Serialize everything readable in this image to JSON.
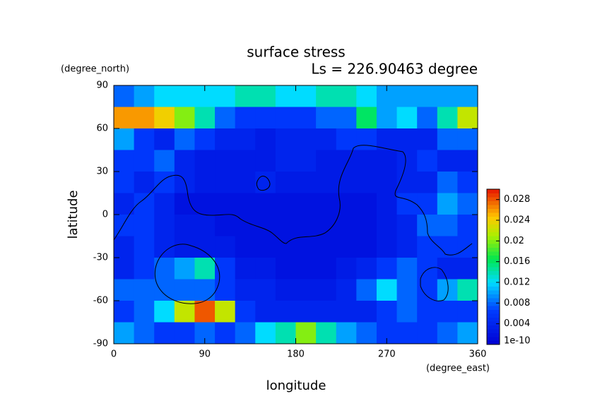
{
  "chart_data": {
    "type": "heatmap",
    "title": "surface stress",
    "subtitle": "Ls = 226.90463 degree",
    "x_label": "longitude",
    "y_label": "latitude",
    "x_unit": "(degree_east)",
    "y_unit": "(degree_north)",
    "x": [
      10,
      30,
      50,
      70,
      90,
      110,
      130,
      150,
      170,
      190,
      210,
      230,
      250,
      270,
      290,
      310,
      330,
      350
    ],
    "y": [
      82.5,
      67.5,
      52.5,
      37.5,
      22.5,
      7.5,
      -7.5,
      -22.5,
      -37.5,
      -52.5,
      -67.5,
      -82.5
    ],
    "z": [
      [
        0.008,
        0.01,
        0.012,
        0.012,
        0.012,
        0.012,
        0.014,
        0.014,
        0.012,
        0.012,
        0.014,
        0.014,
        0.012,
        0.01,
        0.01,
        0.01,
        0.01,
        0.01
      ],
      [
        0.026,
        0.026,
        0.024,
        0.02,
        0.014,
        0.008,
        0.006,
        0.006,
        0.006,
        0.006,
        0.008,
        0.008,
        0.016,
        0.01,
        0.012,
        0.008,
        0.014,
        0.022
      ],
      [
        0.01,
        0.006,
        0.004,
        0.008,
        0.006,
        0.004,
        0.004,
        0.003,
        0.004,
        0.004,
        0.004,
        0.006,
        0.006,
        0.004,
        0.004,
        0.004,
        0.008,
        0.008
      ],
      [
        0.006,
        0.006,
        0.008,
        0.004,
        0.003,
        0.003,
        0.003,
        0.003,
        0.004,
        0.004,
        0.003,
        0.003,
        0.003,
        0.003,
        0.004,
        0.006,
        0.004,
        0.004
      ],
      [
        0.006,
        0.004,
        0.006,
        0.004,
        0.003,
        0.003,
        0.003,
        0.004,
        0.003,
        0.003,
        0.003,
        0.003,
        0.003,
        0.003,
        0.004,
        0.004,
        0.008,
        0.006
      ],
      [
        0.004,
        0.006,
        0.004,
        0.002,
        0.002,
        0.002,
        0.002,
        0.002,
        0.002,
        0.002,
        0.002,
        0.002,
        0.002,
        0.003,
        0.006,
        0.006,
        0.01,
        0.008
      ],
      [
        0.006,
        0.006,
        0.004,
        0.003,
        0.003,
        0.002,
        0.002,
        0.002,
        0.002,
        0.002,
        0.002,
        0.002,
        0.002,
        0.003,
        0.004,
        0.008,
        0.008,
        0.006
      ],
      [
        0.004,
        0.006,
        0.004,
        0.003,
        0.003,
        0.003,
        0.002,
        0.002,
        0.002,
        0.002,
        0.002,
        0.002,
        0.002,
        0.003,
        0.004,
        0.006,
        0.006,
        0.006
      ],
      [
        0.004,
        0.006,
        0.008,
        0.01,
        0.014,
        0.006,
        0.003,
        0.003,
        0.002,
        0.002,
        0.002,
        0.003,
        0.004,
        0.006,
        0.008,
        0.006,
        0.004,
        0.004
      ],
      [
        0.008,
        0.008,
        0.008,
        0.008,
        0.008,
        0.006,
        0.004,
        0.004,
        0.003,
        0.003,
        0.003,
        0.004,
        0.008,
        0.012,
        0.008,
        0.006,
        0.01,
        0.014
      ],
      [
        0.006,
        0.008,
        0.012,
        0.022,
        0.028,
        0.022,
        0.006,
        0.004,
        0.004,
        0.004,
        0.004,
        0.004,
        0.004,
        0.006,
        0.008,
        0.006,
        0.006,
        0.006
      ],
      [
        0.01,
        0.008,
        0.006,
        0.006,
        0.008,
        0.006,
        0.008,
        0.012,
        0.014,
        0.02,
        0.014,
        0.01,
        0.008,
        0.006,
        0.006,
        0.006,
        0.008,
        0.01
      ]
    ],
    "xlim": [
      0,
      360
    ],
    "xticks": [
      0,
      90,
      180,
      270,
      360
    ],
    "ylim": [
      -90,
      90
    ],
    "yticks": [
      -90,
      -60,
      -30,
      0,
      30,
      60,
      90
    ],
    "clim": [
      0,
      0.03
    ],
    "cticks": [
      {
        "value": 1e-10,
        "label": "1e-10"
      },
      0.004,
      0.008,
      0.012,
      0.016,
      0.02,
      0.024,
      0.028
    ]
  }
}
